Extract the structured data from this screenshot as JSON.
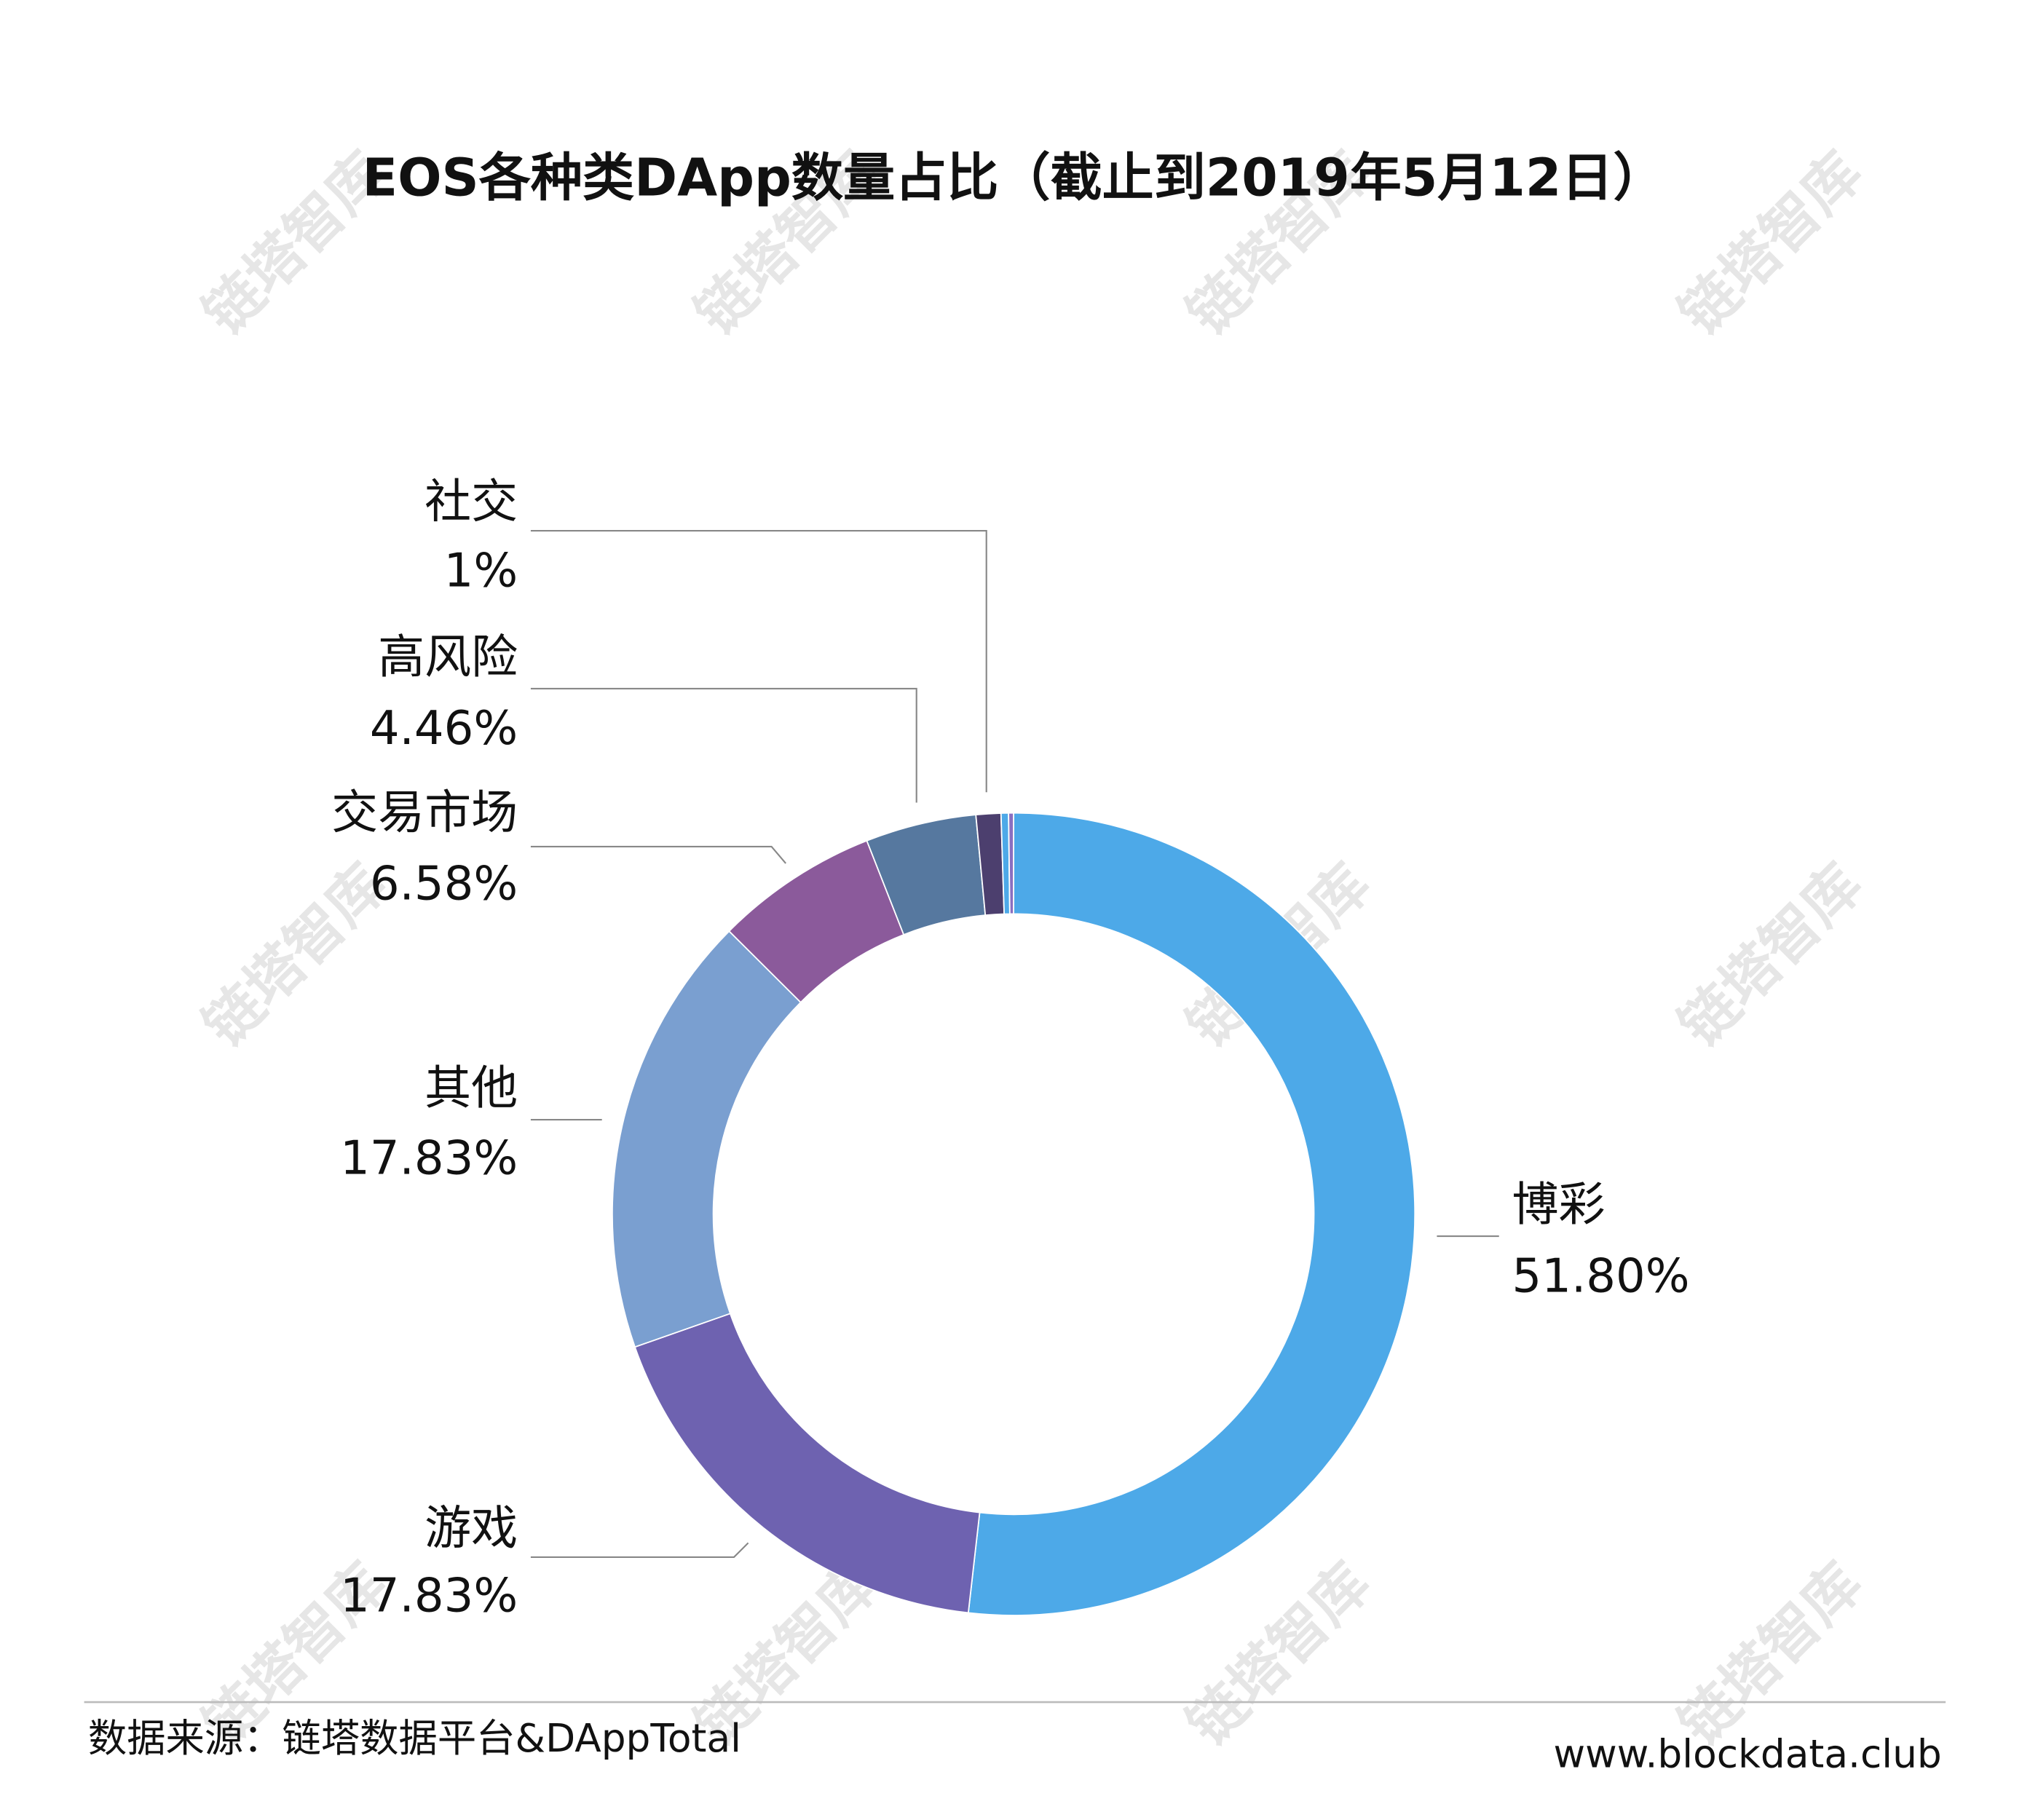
{
  "chart_data": {
    "type": "pie",
    "title": "EOS各种类DApp数量占比（截止到2019年5月12日）",
    "categories": [
      "博彩",
      "游戏",
      "其他",
      "交易市场",
      "高风险",
      "社交",
      null,
      null
    ],
    "values": [
      51.8,
      17.83,
      17.83,
      6.58,
      4.46,
      1,
      0.3,
      0.2
    ],
    "value_labels": [
      "51.80%",
      "17.83%",
      "17.83%",
      "6.58%",
      "4.46%",
      "1%",
      null,
      null
    ],
    "colors": [
      "#4da9e8",
      "#6e62b0",
      "#7a9fd0",
      "#8b5a9b",
      "#56789f",
      "#4c3f6e",
      "#4da9e8",
      "#8a6fc0"
    ],
    "donut": true
  },
  "footer": {
    "source": "数据来源：链塔数据平台&DAppTotal",
    "website": "www.blockdata.club"
  },
  "watermark": "链塔智库"
}
